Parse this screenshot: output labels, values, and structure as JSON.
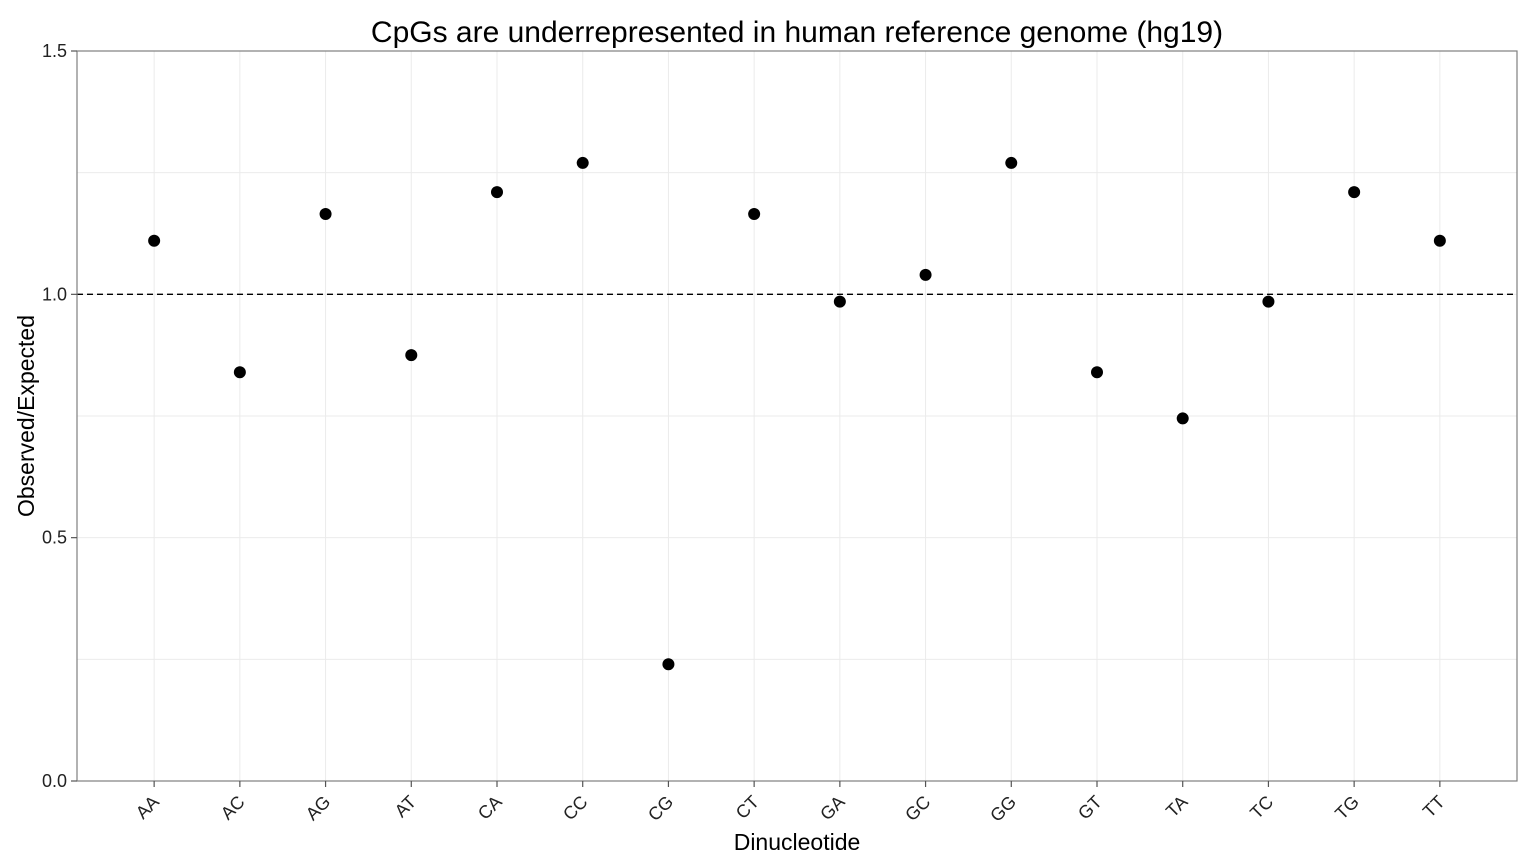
{
  "chart_data": {
    "type": "scatter",
    "title": "CpGs are underrepresented in human reference genome (hg19)",
    "xlabel": "Dinucleotide",
    "ylabel": "Observed/Expected",
    "categories": [
      "AA",
      "AC",
      "AG",
      "AT",
      "CA",
      "CC",
      "CG",
      "CT",
      "GA",
      "GC",
      "GG",
      "GT",
      "TA",
      "TC",
      "TG",
      "TT"
    ],
    "values": [
      1.11,
      0.84,
      1.165,
      0.875,
      1.21,
      1.27,
      0.24,
      1.165,
      0.985,
      1.04,
      1.27,
      0.84,
      0.745,
      0.985,
      1.21,
      1.11
    ],
    "ylim": [
      0,
      1.5
    ],
    "yticks": [
      0.0,
      0.5,
      1.0,
      1.5
    ],
    "ytick_labels": [
      "0.0",
      "0.5",
      "1.0",
      "1.5"
    ],
    "reference_line": 1.0,
    "grid": true,
    "colors": {
      "point": "#000000",
      "grid": "#ebebeb",
      "panel_border": "#7f7f7f"
    }
  }
}
